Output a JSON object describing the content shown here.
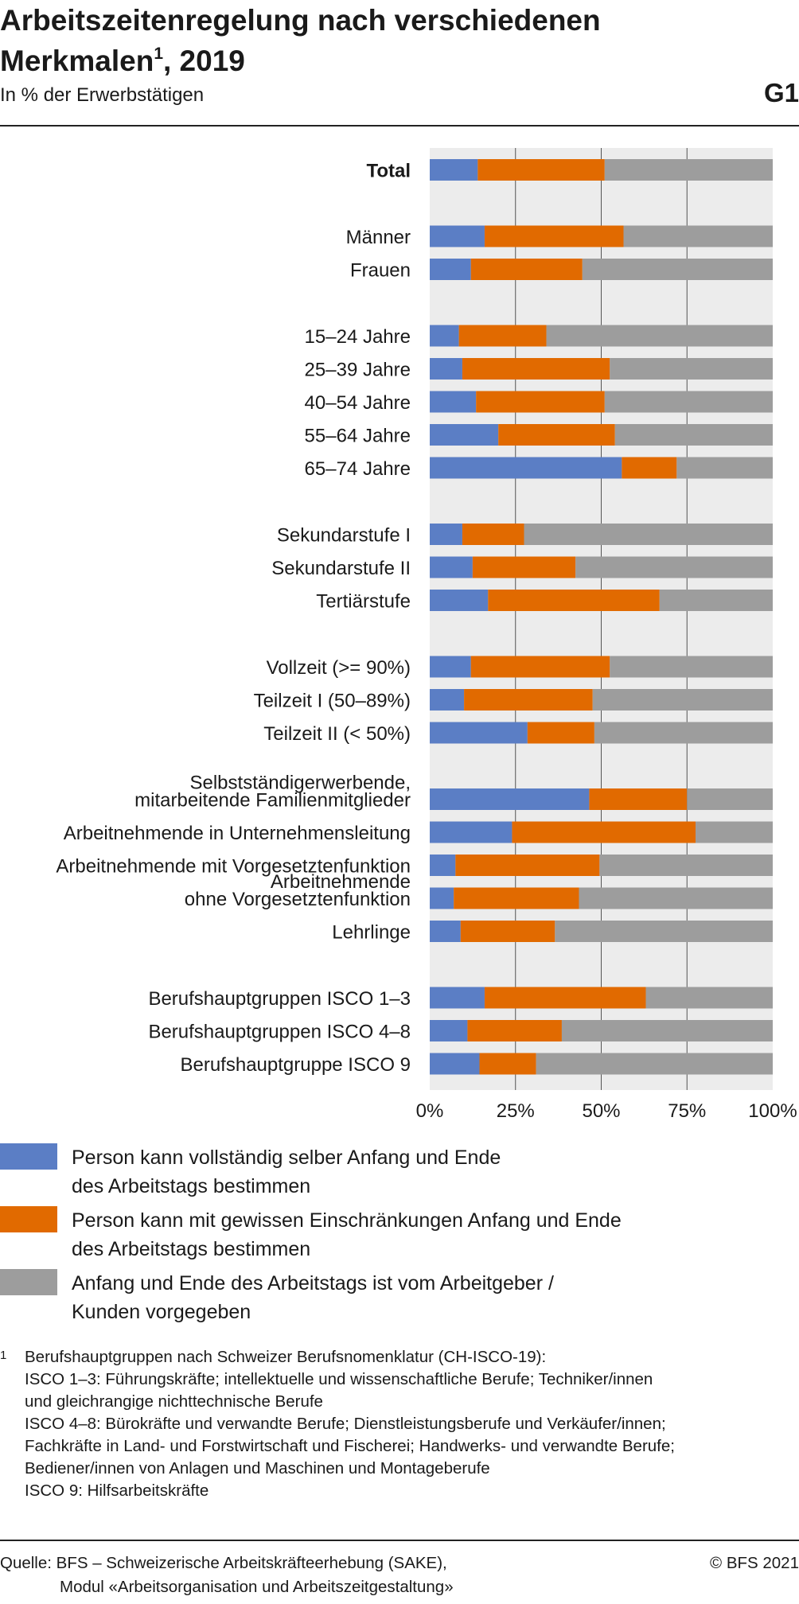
{
  "header": {
    "title_main": "Arbeitszeitenregelung nach verschiedenen Merkmalen",
    "title_sup": "1",
    "title_tail": ", 2019",
    "subtitle": "In % der Erwerbstätigen",
    "figure_id": "G1"
  },
  "colors": {
    "blue": "#5b7ec5",
    "orange": "#e16a00",
    "gray": "#9d9d9d",
    "plot_bg": "#ececec",
    "gridline": "#555555"
  },
  "chart_data": {
    "type": "bar",
    "orientation": "horizontal",
    "stacked": true,
    "normalized_percent": true,
    "xlim": [
      0,
      100
    ],
    "x_ticks": [
      "0%",
      "25%",
      "50%",
      "75%",
      "100%"
    ],
    "grid": true,
    "legend_position": "bottom",
    "categories": [
      "Total",
      "Männer",
      "Frauen",
      "15–24 Jahre",
      "25–39 Jahre",
      "40–54 Jahre",
      "55–64 Jahre",
      "65–74 Jahre",
      "Sekundarstufe I",
      "Sekundarstufe II",
      "Tertiärstufe",
      "Vollzeit (>= 90%)",
      "Teilzeit I (50–89%)",
      "Teilzeit II (< 50%)",
      "Selbstständigerwerbende, mitarbeitende Familienmitglieder",
      "Arbeitnehmende in Unternehmensleitung",
      "Arbeitnehmende mit Vorgesetztenfunktion",
      "Arbeitnehmende ohne Vorgesetztenfunktion",
      "Lehrlinge",
      "Berufshauptgruppen ISCO 1–3",
      "Berufshauptgruppen ISCO 4–8",
      "Berufshauptgruppe ISCO 9"
    ],
    "category_labels": [
      [
        "Total"
      ],
      [
        "Männer"
      ],
      [
        "Frauen"
      ],
      [
        "15–24 Jahre"
      ],
      [
        "25–39 Jahre"
      ],
      [
        "40–54 Jahre"
      ],
      [
        "55–64 Jahre"
      ],
      [
        "65–74 Jahre"
      ],
      [
        "Sekundarstufe I"
      ],
      [
        "Sekundarstufe II"
      ],
      [
        "Tertiärstufe"
      ],
      [
        "Vollzeit (>= 90%)"
      ],
      [
        "Teilzeit I (50–89%)"
      ],
      [
        "Teilzeit II (< 50%)"
      ],
      [
        "Selbstständigerwerbende,",
        "mitarbeitende Familienmitglieder"
      ],
      [
        "Arbeitnehmende in Unternehmensleitung"
      ],
      [
        "Arbeitnehmende mit Vorgesetztenfunktion"
      ],
      [
        "Arbeitnehmende",
        "ohne Vorgesetztenfunktion"
      ],
      [
        "Lehrlinge"
      ],
      [
        "Berufshauptgruppen ISCO 1–3"
      ],
      [
        "Berufshauptgruppen ISCO 4–8"
      ],
      [
        "Berufshauptgruppe ISCO 9"
      ]
    ],
    "groups_end_at": [
      0,
      2,
      7,
      10,
      13,
      18
    ],
    "bold_categories": [
      0
    ],
    "series": [
      {
        "name": "Person kann vollständig selber Anfang und Ende des Arbeitstags bestimmen",
        "values": [
          14.0,
          16.0,
          12.0,
          8.5,
          9.5,
          13.5,
          20.0,
          56.0,
          9.5,
          12.5,
          17.0,
          12.0,
          10.0,
          28.5,
          46.5,
          24.0,
          7.5,
          7.0,
          9.0,
          16.0,
          11.0,
          14.5
        ]
      },
      {
        "name": "Person kann mit gewissen Einschränkungen Anfang und Ende des Arbeitstags bestimmen",
        "values": [
          37.0,
          40.5,
          32.5,
          25.5,
          43.0,
          37.5,
          34.0,
          16.0,
          18.0,
          30.0,
          50.0,
          40.5,
          37.5,
          19.5,
          28.5,
          53.5,
          42.0,
          36.5,
          27.5,
          47.0,
          27.5,
          16.5
        ]
      },
      {
        "name": "Anfang und Ende des Arbeitstags ist vom Arbeitgeber / Kunden vorgegeben",
        "values": [
          49.0,
          43.5,
          55.5,
          66.0,
          47.5,
          49.0,
          46.0,
          28.0,
          72.5,
          57.5,
          33.0,
          47.5,
          52.5,
          52.0,
          25.0,
          22.5,
          50.5,
          56.5,
          63.5,
          37.0,
          61.5,
          69.0
        ]
      }
    ]
  },
  "legend": [
    {
      "color": "#5b7ec5",
      "lines": [
        "Person kann vollständig selber Anfang und Ende",
        "des Arbeitstags bestimmen"
      ]
    },
    {
      "color": "#e16a00",
      "lines": [
        "Person kann mit gewissen Einschränkungen Anfang und Ende",
        "des Arbeitstags bestimmen"
      ]
    },
    {
      "color": "#9d9d9d",
      "lines": [
        "Anfang und Ende des Arbeitstags ist vom Arbeitgeber /",
        "Kunden vorgegeben"
      ]
    }
  ],
  "footnote": {
    "mark": "1",
    "lines": [
      "Berufshauptgruppen nach Schweizer Berufsnomenklatur (CH-ISCO-19):",
      "ISCO 1–3: Führungskräfte; intellektuelle und wissenschaftliche Berufe; Techniker/innen",
      "und gleichrangige nichttechnische Berufe",
      "ISCO 4–8: Bürokräfte und verwandte Berufe; Dienstleistungsberufe und Verkäufer/innen;",
      "Fachkräfte in Land- und Forstwirtschaft und Fischerei; Handwerks- und verwandte Berufe;",
      "Bediener/innen von Anlagen und Maschinen und Montageberufe",
      "ISCO 9: Hilfsarbeitskräfte"
    ]
  },
  "source": {
    "line1": "Quelle: BFS – Schweizerische Arbeitskräfteerhebung (SAKE),",
    "line2": "Modul «Arbeitsorganisation und Arbeitszeitgestaltung»",
    "copyright": "© BFS 2021"
  }
}
